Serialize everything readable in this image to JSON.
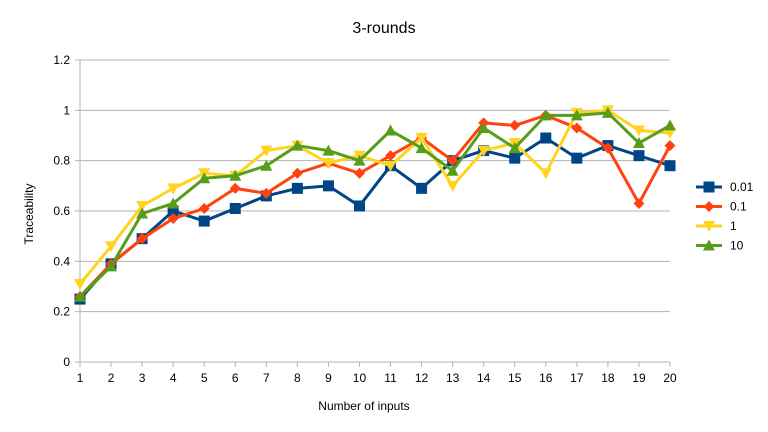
{
  "chart_data": {
    "type": "line",
    "title": "3-rounds",
    "xlabel": "Number of inputs",
    "ylabel": "Traceability",
    "x": [
      1,
      2,
      3,
      4,
      5,
      6,
      7,
      8,
      9,
      10,
      11,
      12,
      13,
      14,
      15,
      16,
      17,
      18,
      19,
      20
    ],
    "ylim": [
      0,
      1.2
    ],
    "yticks": [
      "0",
      "0.2",
      "0.4",
      "0.6",
      "0.8",
      "1",
      "1.2"
    ],
    "xticks": [
      "1",
      "2",
      "3",
      "4",
      "5",
      "6",
      "7",
      "8",
      "9",
      "10",
      "11",
      "12",
      "13",
      "14",
      "15",
      "16",
      "17",
      "18",
      "19",
      "20"
    ],
    "grid": "horizontal",
    "legend_position": "right",
    "series": [
      {
        "name": "0.01",
        "color": "#004586",
        "marker": "square",
        "values": [
          0.25,
          0.39,
          0.49,
          0.6,
          0.56,
          0.61,
          0.66,
          0.69,
          0.7,
          0.62,
          0.78,
          0.69,
          0.8,
          0.84,
          0.81,
          0.89,
          0.81,
          0.86,
          0.82,
          0.78
        ]
      },
      {
        "name": "0.1",
        "color": "#ff420e",
        "marker": "diamond",
        "values": [
          0.26,
          0.39,
          0.49,
          0.57,
          0.61,
          0.69,
          0.67,
          0.75,
          0.79,
          0.75,
          0.82,
          0.89,
          0.8,
          0.95,
          0.94,
          0.98,
          0.93,
          0.85,
          0.63,
          0.86
        ]
      },
      {
        "name": "1",
        "color": "#ffd320",
        "marker": "triangle-down",
        "values": [
          0.31,
          0.46,
          0.62,
          0.69,
          0.75,
          0.74,
          0.84,
          0.86,
          0.79,
          0.82,
          0.78,
          0.89,
          0.7,
          0.84,
          0.87,
          0.75,
          0.99,
          1.0,
          0.92,
          0.91
        ]
      },
      {
        "name": "10",
        "color": "#579d1c",
        "marker": "triangle-up",
        "values": [
          0.26,
          0.38,
          0.59,
          0.63,
          0.73,
          0.74,
          0.78,
          0.86,
          0.84,
          0.8,
          0.92,
          0.85,
          0.76,
          0.93,
          0.85,
          0.98,
          0.98,
          0.99,
          0.87,
          0.94
        ]
      }
    ]
  }
}
